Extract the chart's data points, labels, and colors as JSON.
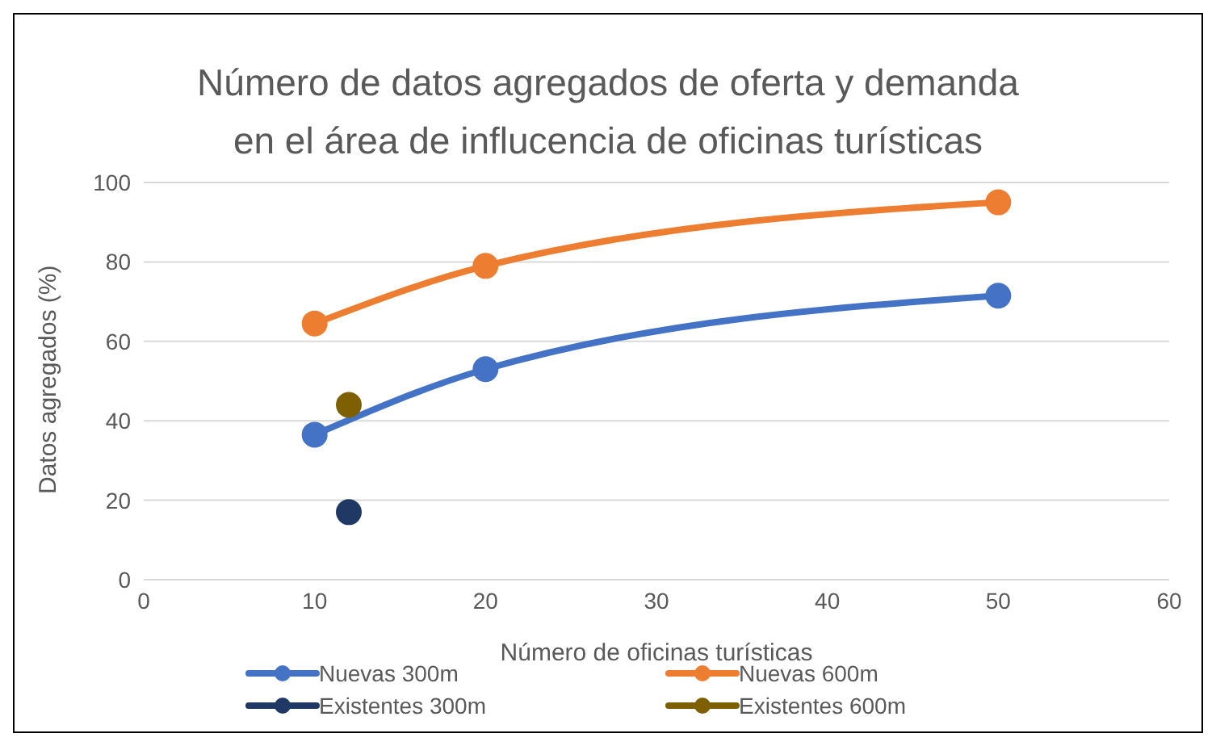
{
  "chart_data": {
    "type": "line",
    "title": "Número de datos agregados de oferta y demanda en el área de influcencia de oficinas turísticas",
    "xlabel": "Número de oficinas turísticas",
    "ylabel": "Datos agregados (%)",
    "series": [
      {
        "name": "Nuevas 300m",
        "color": "#4472c4",
        "x": [
          10,
          20,
          50
        ],
        "values": [
          36.5,
          53,
          71.5
        ]
      },
      {
        "name": "Nuevas 600m",
        "color": "#ed7d31",
        "x": [
          10,
          20,
          50
        ],
        "values": [
          64.5,
          79,
          95
        ]
      },
      {
        "name": "Existentes 300m",
        "color": "#203864",
        "x": [
          12
        ],
        "values": [
          17
        ]
      },
      {
        "name": "Existentes 600m",
        "color": "#7f6000",
        "x": [
          12
        ],
        "values": [
          44
        ]
      }
    ],
    "xlim": [
      0,
      60
    ],
    "xticks": [
      0,
      10,
      20,
      30,
      40,
      50,
      60
    ],
    "ylim": [
      0,
      100
    ],
    "yticks": [
      0,
      20,
      40,
      60,
      80,
      100
    ],
    "grid": "y",
    "legend": "bottom",
    "marker": "circle",
    "line_style": "solid"
  }
}
